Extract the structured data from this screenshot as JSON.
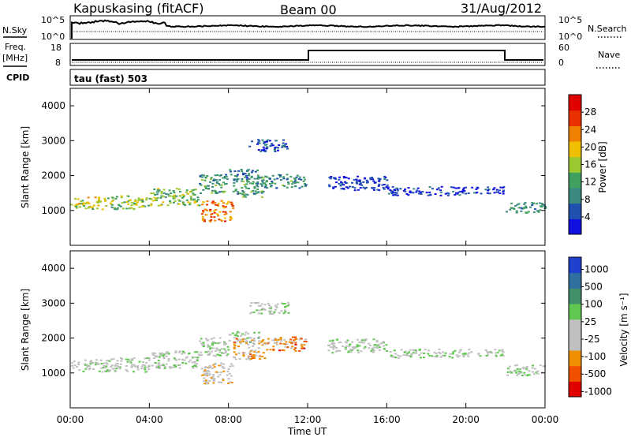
{
  "header": {
    "title": "Kapuskasing (fitACF)",
    "beam": "Beam 00",
    "date": "31/Aug/2012"
  },
  "status_panels": {
    "nsky_label": "N.Sky",
    "nsky_ticks": [
      "10^5",
      "10^0"
    ],
    "nsearch_label": "N.Search",
    "nsearch_ticks": [
      "10^5",
      "10^0"
    ],
    "freq_label_1": "Freq.",
    "freq_label_2": "[MHz]",
    "freq_ticks": [
      "18",
      "8"
    ],
    "nave_label": "Nave",
    "nave_ticks": [
      "60",
      "0"
    ],
    "cpid_label": "CPID",
    "cpid_text": "tau (fast) 503"
  },
  "colors": {
    "power_scale": [
      "#1010e0",
      "#2050b0",
      "#3a8a80",
      "#40a060",
      "#9cc830",
      "#f0c000",
      "#f08000",
      "#e83000",
      "#e00000"
    ],
    "velocity_scale": [
      "#2040d0",
      "#3070a0",
      "#40906a",
      "#60c850",
      "#c0c0c0",
      "#c0c0c0",
      "#f09000",
      "#f05000",
      "#e00000"
    ]
  },
  "chart_data": [
    {
      "type": "heatmap",
      "title": "",
      "ylabel": "Slant Range [km]",
      "xlabel": "",
      "ylim": [
        0,
        4500
      ],
      "y_ticks": [
        "1000",
        "2000",
        "3000",
        "4000"
      ],
      "xlim": [
        0,
        24
      ],
      "colorbar_label": "Power [dB]",
      "colorbar_ticks": [
        "4",
        "8",
        "12",
        "16",
        "20",
        "24",
        "28"
      ],
      "echo_bands": [
        {
          "t0": 0.0,
          "t1": 2.0,
          "r0": 1050,
          "r1": 1400,
          "level": 0.55
        },
        {
          "t0": 2.0,
          "t1": 4.0,
          "r0": 1050,
          "r1": 1450,
          "level": 0.45
        },
        {
          "t0": 4.0,
          "t1": 6.5,
          "r0": 1150,
          "r1": 1650,
          "level": 0.45
        },
        {
          "t0": 6.5,
          "t1": 8.0,
          "r0": 1500,
          "r1": 2050,
          "level": 0.35
        },
        {
          "t0": 8.0,
          "t1": 9.5,
          "r0": 1900,
          "r1": 2200,
          "level": 0.25
        },
        {
          "t0": 9.0,
          "t1": 11.0,
          "r0": 2700,
          "r1": 3050,
          "level": 0.15
        },
        {
          "t0": 6.6,
          "t1": 8.2,
          "r0": 700,
          "r1": 1300,
          "level": 0.75
        },
        {
          "t0": 8.2,
          "t1": 9.8,
          "r0": 1400,
          "r1": 2000,
          "level": 0.35
        },
        {
          "t0": 9.8,
          "t1": 11.9,
          "r0": 1650,
          "r1": 2050,
          "level": 0.3
        },
        {
          "t0": 13.0,
          "t1": 16.0,
          "r0": 1600,
          "r1": 2000,
          "level": 0.1
        },
        {
          "t0": 16.0,
          "t1": 20.0,
          "r0": 1450,
          "r1": 1700,
          "level": 0.1
        },
        {
          "t0": 20.0,
          "t1": 21.9,
          "r0": 1500,
          "r1": 1700,
          "level": 0.1
        },
        {
          "t0": 22.0,
          "t1": 24.0,
          "r0": 950,
          "r1": 1250,
          "level": 0.3
        }
      ]
    },
    {
      "type": "heatmap",
      "title": "",
      "ylabel": "Slant Range [km]",
      "xlabel": "Time UT",
      "ylim": [
        0,
        4500
      ],
      "y_ticks": [
        "1000",
        "2000",
        "3000",
        "4000"
      ],
      "xlim": [
        0,
        24
      ],
      "x_ticks": [
        "00:00",
        "04:00",
        "08:00",
        "12:00",
        "16:00",
        "20:00",
        "00:00"
      ],
      "colorbar_label": "Velocity [m s⁻¹]",
      "colorbar_ticks": [
        "1000",
        "500",
        "100",
        "25",
        "-25",
        "-100",
        "-500",
        "-1000"
      ],
      "echo_bands": [
        {
          "t0": 0.0,
          "t1": 2.0,
          "r0": 1050,
          "r1": 1400,
          "level": 0.5
        },
        {
          "t0": 2.0,
          "t1": 4.0,
          "r0": 1050,
          "r1": 1450,
          "level": 0.5
        },
        {
          "t0": 4.0,
          "t1": 6.5,
          "r0": 1150,
          "r1": 1650,
          "level": 0.5
        },
        {
          "t0": 6.5,
          "t1": 8.0,
          "r0": 1500,
          "r1": 2050,
          "level": 0.5
        },
        {
          "t0": 8.0,
          "t1": 9.5,
          "r0": 1900,
          "r1": 2200,
          "level": 0.45
        },
        {
          "t0": 9.0,
          "t1": 11.0,
          "r0": 2700,
          "r1": 3050,
          "level": 0.5
        },
        {
          "t0": 6.6,
          "t1": 8.2,
          "r0": 700,
          "r1": 1300,
          "level": 0.6
        },
        {
          "t0": 8.2,
          "t1": 9.8,
          "r0": 1400,
          "r1": 2000,
          "level": 0.65
        },
        {
          "t0": 9.8,
          "t1": 11.9,
          "r0": 1650,
          "r1": 2050,
          "level": 0.75
        },
        {
          "t0": 13.0,
          "t1": 16.0,
          "r0": 1600,
          "r1": 2000,
          "level": 0.5
        },
        {
          "t0": 16.0,
          "t1": 20.0,
          "r0": 1450,
          "r1": 1700,
          "level": 0.5
        },
        {
          "t0": 20.0,
          "t1": 21.9,
          "r0": 1500,
          "r1": 1700,
          "level": 0.5
        },
        {
          "t0": 22.0,
          "t1": 24.0,
          "r0": 950,
          "r1": 1250,
          "level": 0.5
        }
      ]
    }
  ]
}
